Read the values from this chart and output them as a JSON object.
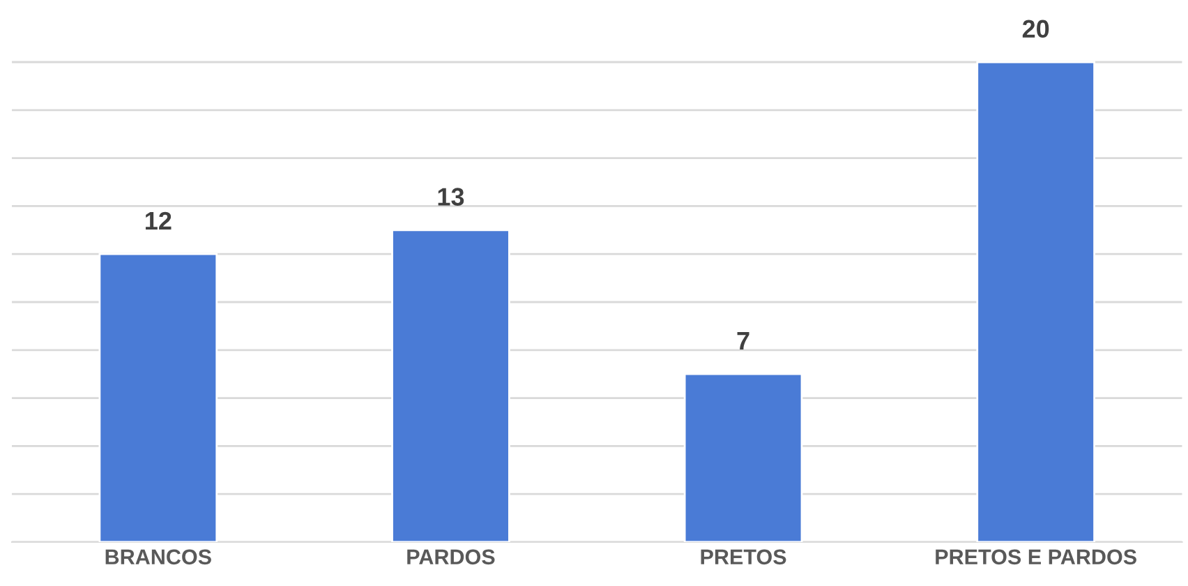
{
  "chart_data": {
    "type": "bar",
    "categories": [
      "BRANCOS",
      "PARDOS",
      "PRETOS",
      "PRETOS E PARDOS"
    ],
    "values": [
      12,
      13,
      7,
      20
    ],
    "color": "#4a7bd6",
    "yticks": [
      {
        "value": 0,
        "label": null
      },
      {
        "value": 2,
        "label": null
      },
      {
        "value": 4,
        "label": null
      },
      {
        "value": 6,
        "label": null
      },
      {
        "value": 8,
        "label": null
      },
      {
        "value": 10,
        "label": null
      },
      {
        "value": 12,
        "label": null
      },
      {
        "value": 14,
        "label": null
      },
      {
        "value": 16,
        "label": null
      },
      {
        "value": 18,
        "label": null
      },
      {
        "value": 20,
        "label": null
      }
    ],
    "tick_labels": "x",
    "grid": "y",
    "data_labels": true
  }
}
